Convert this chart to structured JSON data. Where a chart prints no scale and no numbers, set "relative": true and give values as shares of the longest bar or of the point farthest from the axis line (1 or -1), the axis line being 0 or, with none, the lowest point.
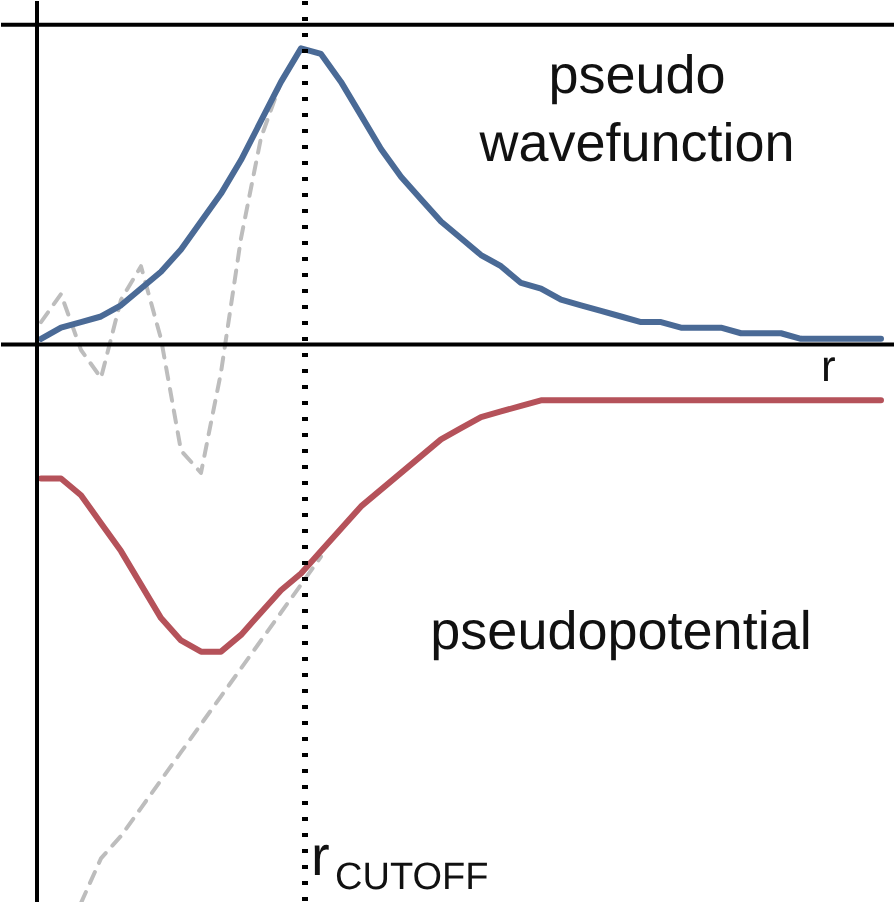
{
  "chart_data": {
    "type": "line",
    "relative": true,
    "xlabel": "r",
    "categories": [
      null,
      null,
      null,
      null,
      null,
      null,
      null,
      null,
      null,
      null,
      null,
      null,
      null,
      null,
      null,
      null,
      null,
      null,
      null,
      null,
      null,
      null,
      null,
      null,
      null,
      null,
      null,
      null,
      null,
      null,
      null,
      null,
      null,
      null,
      null,
      null,
      null,
      null,
      null,
      null,
      null,
      null,
      null
    ],
    "series": [
      {
        "name": "pseudo wavefunction",
        "color": "#4a6a96",
        "line_style": "solid",
        "values": [
          0.01,
          0.03,
          0.04,
          0.05,
          0.07,
          0.1,
          0.13,
          0.17,
          0.22,
          0.27,
          0.33,
          0.4,
          0.47,
          0.53,
          0.52,
          0.47,
          0.41,
          0.35,
          0.3,
          0.26,
          0.22,
          0.19,
          0.16,
          0.14,
          0.11,
          0.1,
          0.08,
          0.07,
          0.06,
          0.05,
          0.04,
          0.04,
          0.03,
          0.03,
          0.03,
          0.02,
          0.02,
          0.02,
          0.01,
          0.01,
          0.01,
          0.01,
          0.01
        ]
      },
      {
        "name": "pseudopotential",
        "color": "#b5525a",
        "line_style": "solid",
        "values": [
          -0.24,
          -0.24,
          -0.27,
          -0.32,
          -0.37,
          -0.43,
          -0.49,
          -0.53,
          -0.55,
          -0.55,
          -0.52,
          -0.48,
          -0.44,
          -0.41,
          -0.37,
          -0.33,
          -0.29,
          -0.26,
          -0.23,
          -0.2,
          -0.17,
          -0.15,
          -0.13,
          -0.12,
          -0.11,
          -0.1,
          -0.1,
          -0.1,
          -0.1,
          -0.1,
          -0.1,
          -0.1,
          -0.1,
          -0.1,
          -0.1,
          -0.1,
          -0.1,
          -0.1,
          -0.1,
          -0.1,
          -0.1,
          -0.1,
          -0.1
        ]
      },
      {
        "color": "#bdbdbd",
        "line_style": "dashed",
        "values": [
          0.04,
          0.09,
          -0.01,
          -0.06,
          0.08,
          0.14,
          0.01,
          -0.19,
          -0.23,
          -0.05,
          0.19,
          0.37,
          0.47,
          null,
          null,
          null,
          null,
          null,
          null,
          null,
          null,
          null,
          null,
          null,
          null,
          null,
          null,
          null,
          null,
          null,
          null,
          null,
          null,
          null,
          null,
          null,
          null,
          null,
          null,
          null,
          null,
          null,
          null
        ]
      },
      {
        "color": "#bdbdbd",
        "line_style": "dashed",
        "values": [
          null,
          null,
          -1.0,
          -0.92,
          -0.88,
          -0.83,
          -0.78,
          -0.73,
          -0.68,
          -0.63,
          -0.58,
          -0.53,
          -0.48,
          -0.43,
          -0.38,
          null,
          null,
          null,
          null,
          null,
          null,
          null,
          null,
          null,
          null,
          null,
          null,
          null,
          null,
          null,
          null,
          null,
          null,
          null,
          null,
          null,
          null,
          null,
          null,
          null,
          null,
          null,
          null
        ]
      }
    ],
    "annotations": [
      "r$_{CUTOFF}$"
    ],
    "grid": false
  }
}
